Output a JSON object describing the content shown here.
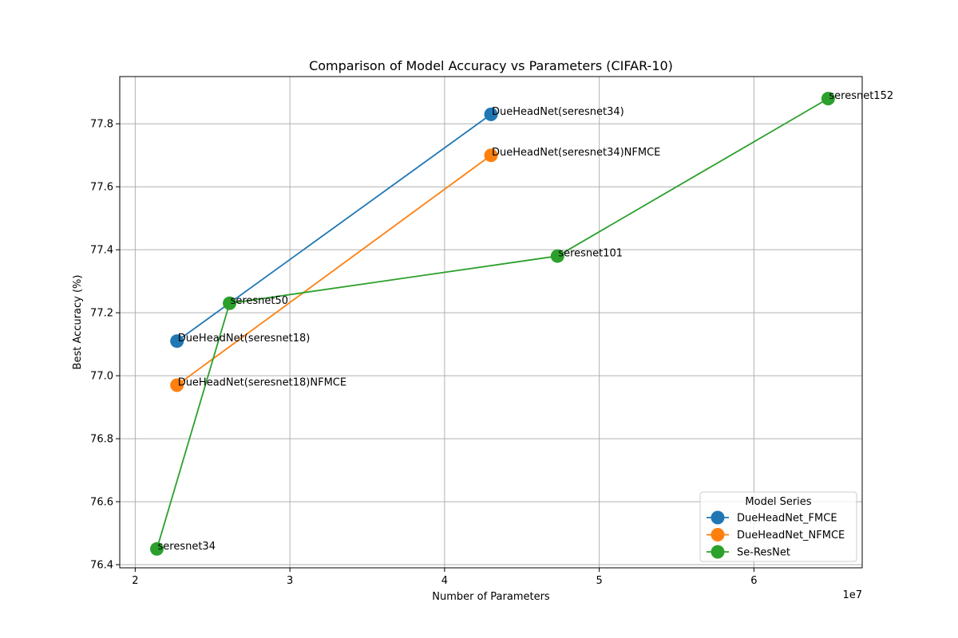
{
  "chart_data": {
    "type": "line",
    "title": "Comparison of Model Accuracy vs Parameters (CIFAR-10)",
    "xlabel": "Number of Parameters",
    "ylabel": "Best Accuracy (%)",
    "x_offset_label": "1e7",
    "x_scale": 10000000,
    "xlim": [
      1.9,
      6.7
    ],
    "ylim": [
      76.39,
      77.95
    ],
    "x_ticks": [
      2,
      3,
      4,
      5,
      6
    ],
    "x_tick_labels": [
      "2",
      "3",
      "4",
      "5",
      "6"
    ],
    "y_ticks": [
      76.4,
      76.6,
      76.8,
      77.0,
      77.2,
      77.4,
      77.6,
      77.8
    ],
    "y_tick_labels": [
      "76.4",
      "76.6",
      "76.8",
      "77.0",
      "77.2",
      "77.4",
      "77.6",
      "77.8"
    ],
    "grid": true,
    "legend": {
      "title": "Model Series",
      "placement": "lower-right"
    },
    "series": [
      {
        "name": "DueHeadNet_FMCE",
        "color": "#1f77b4",
        "points": [
          {
            "x": 2.27,
            "y": 77.11,
            "label": "DueHeadNet(seresnet18)"
          },
          {
            "x": 4.3,
            "y": 77.83,
            "label": "DueHeadNet(seresnet34)"
          }
        ]
      },
      {
        "name": "DueHeadNet_NFMCE",
        "color": "#ff7f0e",
        "points": [
          {
            "x": 2.27,
            "y": 76.97,
            "label": "DueHeadNet(seresnet18)NFMCE"
          },
          {
            "x": 4.3,
            "y": 77.7,
            "label": "DueHeadNet(seresnet34)NFMCE"
          }
        ]
      },
      {
        "name": "Se-ResNet",
        "color": "#2ca02c",
        "points": [
          {
            "x": 2.14,
            "y": 76.45,
            "label": "seresnet34"
          },
          {
            "x": 2.61,
            "y": 77.23,
            "label": "seresnet50"
          },
          {
            "x": 4.73,
            "y": 77.38,
            "label": "seresnet101"
          },
          {
            "x": 6.48,
            "y": 77.88,
            "label": "seresnet152"
          }
        ]
      }
    ]
  }
}
